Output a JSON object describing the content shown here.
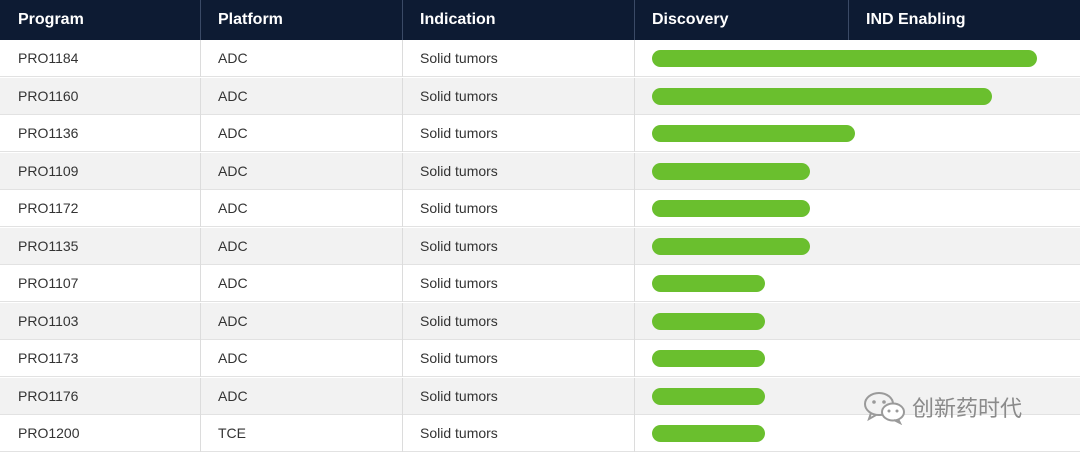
{
  "colors": {
    "header_bg": "#0d1b33",
    "header_text": "#ffffff",
    "bar": "#6abf2e",
    "row_alt": "#f2f2f2",
    "text": "#333333"
  },
  "header": {
    "program": "Program",
    "platform": "Platform",
    "indication": "Indication",
    "discovery": "Discovery",
    "ind_enabling": "IND Enabling"
  },
  "watermark": {
    "text": "创新药时代",
    "icon": "wechat-icon"
  },
  "chart_data": {
    "type": "bar",
    "orientation": "horizontal",
    "stages": [
      "Discovery",
      "IND Enabling"
    ],
    "categories": [
      "PRO1184",
      "PRO1160",
      "PRO1136",
      "PRO1109",
      "PRO1172",
      "PRO1135",
      "PRO1107",
      "PRO1103",
      "PRO1173",
      "PRO1176",
      "PRO1200"
    ],
    "platforms": [
      "ADC",
      "ADC",
      "ADC",
      "ADC",
      "ADC",
      "ADC",
      "ADC",
      "ADC",
      "ADC",
      "ADC",
      "TCE"
    ],
    "indications": [
      "Solid tumors",
      "Solid tumors",
      "Solid tumors",
      "Solid tumors",
      "Solid tumors",
      "Solid tumors",
      "Solid tumors",
      "Solid tumors",
      "Solid tumors",
      "Solid tumors",
      "Solid tumors"
    ],
    "values": [
      1.8,
      1.59,
      0.95,
      0.74,
      0.74,
      0.74,
      0.53,
      0.53,
      0.53,
      0.53,
      0.53
    ],
    "xlim": [
      0,
      2
    ],
    "grid": false,
    "legend": "none"
  }
}
